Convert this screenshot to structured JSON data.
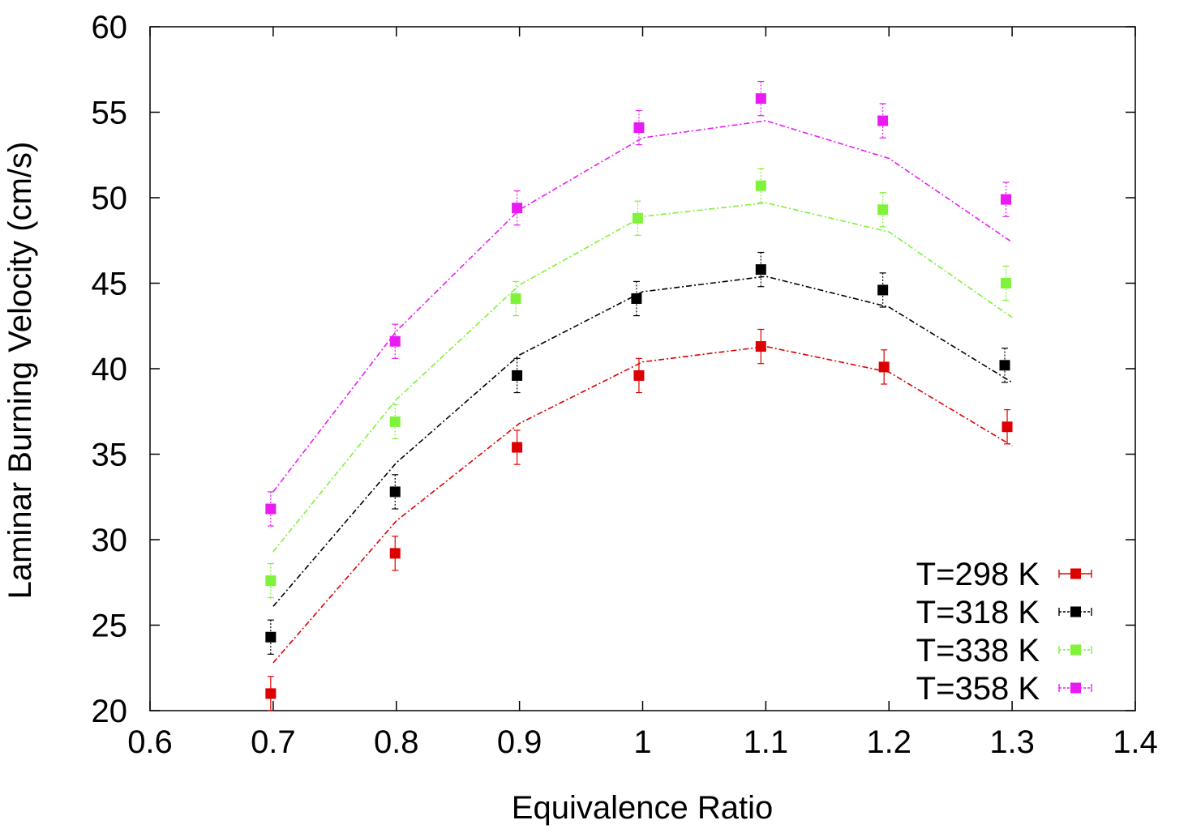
{
  "chart_data": {
    "type": "scatter",
    "xlabel": "Equivalence Ratio",
    "ylabel": "Laminar Burning Velocity (cm/s)",
    "xlim": [
      0.6,
      1.4
    ],
    "ylim": [
      20,
      60
    ],
    "xticks": [
      0.6,
      0.7,
      0.8,
      0.9,
      1.0,
      1.1,
      1.2,
      1.3,
      1.4
    ],
    "xtick_labels": [
      "0.6",
      "0.7",
      "0.8",
      "0.9",
      "1",
      "1.1",
      "1.2",
      "1.3",
      "1.4"
    ],
    "yticks": [
      20,
      25,
      30,
      35,
      40,
      45,
      50,
      55,
      60
    ],
    "ytick_labels": [
      "20",
      "25",
      "30",
      "35",
      "40",
      "45",
      "50",
      "55",
      "60"
    ],
    "legend_position": "bottom-right",
    "grid": false,
    "series": [
      {
        "name": "T=298 K",
        "color": "#dd0000",
        "points": [
          {
            "x": 0.698,
            "y": 21.0,
            "err": 1.0
          },
          {
            "x": 0.799,
            "y": 29.2,
            "err": 1.0
          },
          {
            "x": 0.898,
            "y": 35.4,
            "err": 1.0
          },
          {
            "x": 0.997,
            "y": 39.6,
            "err": 1.0
          },
          {
            "x": 1.096,
            "y": 41.3,
            "err": 1.0
          },
          {
            "x": 1.196,
            "y": 40.1,
            "err": 1.0
          },
          {
            "x": 1.296,
            "y": 36.6,
            "err": 1.0
          }
        ],
        "fit": [
          {
            "x": 0.7,
            "y": 22.8
          },
          {
            "x": 0.8,
            "y": 31.1
          },
          {
            "x": 0.9,
            "y": 36.8
          },
          {
            "x": 1.0,
            "y": 40.4
          },
          {
            "x": 1.1,
            "y": 41.3
          },
          {
            "x": 1.2,
            "y": 39.8
          },
          {
            "x": 1.3,
            "y": 35.5
          }
        ]
      },
      {
        "name": "T=318 K",
        "color": "#000000",
        "points": [
          {
            "x": 0.698,
            "y": 24.3,
            "err": 1.0
          },
          {
            "x": 0.799,
            "y": 32.8,
            "err": 1.0
          },
          {
            "x": 0.898,
            "y": 39.6,
            "err": 1.0
          },
          {
            "x": 0.995,
            "y": 44.1,
            "err": 1.0
          },
          {
            "x": 1.096,
            "y": 45.8,
            "err": 1.0
          },
          {
            "x": 1.195,
            "y": 44.6,
            "err": 1.0
          },
          {
            "x": 1.294,
            "y": 40.2,
            "err": 1.0
          }
        ],
        "fit": [
          {
            "x": 0.7,
            "y": 26.1
          },
          {
            "x": 0.8,
            "y": 34.5
          },
          {
            "x": 0.9,
            "y": 40.8
          },
          {
            "x": 1.0,
            "y": 44.5
          },
          {
            "x": 1.1,
            "y": 45.4
          },
          {
            "x": 1.2,
            "y": 43.6
          },
          {
            "x": 1.3,
            "y": 39.2
          }
        ]
      },
      {
        "name": "T=338 K",
        "color": "#7ff23a",
        "points": [
          {
            "x": 0.698,
            "y": 27.6,
            "err": 1.0
          },
          {
            "x": 0.799,
            "y": 36.9,
            "err": 1.0
          },
          {
            "x": 0.897,
            "y": 44.1,
            "err": 1.0
          },
          {
            "x": 0.996,
            "y": 48.8,
            "err": 1.0
          },
          {
            "x": 1.096,
            "y": 50.7,
            "err": 1.0
          },
          {
            "x": 1.195,
            "y": 49.3,
            "err": 1.0
          },
          {
            "x": 1.295,
            "y": 45.0,
            "err": 1.0
          }
        ],
        "fit": [
          {
            "x": 0.7,
            "y": 29.3
          },
          {
            "x": 0.8,
            "y": 38.2
          },
          {
            "x": 0.9,
            "y": 44.9
          },
          {
            "x": 1.0,
            "y": 48.9
          },
          {
            "x": 1.1,
            "y": 49.7
          },
          {
            "x": 1.2,
            "y": 48.0
          },
          {
            "x": 1.3,
            "y": 43.0
          }
        ]
      },
      {
        "name": "T=358 K",
        "color": "#e81bf2",
        "points": [
          {
            "x": 0.698,
            "y": 31.8,
            "err": 1.0
          },
          {
            "x": 0.799,
            "y": 41.6,
            "err": 1.0
          },
          {
            "x": 0.898,
            "y": 49.4,
            "err": 1.0
          },
          {
            "x": 0.997,
            "y": 54.1,
            "err": 1.0
          },
          {
            "x": 1.096,
            "y": 55.8,
            "err": 1.0
          },
          {
            "x": 1.195,
            "y": 54.5,
            "err": 1.0
          },
          {
            "x": 1.295,
            "y": 49.9,
            "err": 1.0
          }
        ],
        "fit": [
          {
            "x": 0.7,
            "y": 32.8
          },
          {
            "x": 0.8,
            "y": 42.2
          },
          {
            "x": 0.9,
            "y": 49.3
          },
          {
            "x": 1.0,
            "y": 53.5
          },
          {
            "x": 1.1,
            "y": 54.5
          },
          {
            "x": 1.2,
            "y": 52.3
          },
          {
            "x": 1.3,
            "y": 47.4
          }
        ]
      }
    ]
  }
}
